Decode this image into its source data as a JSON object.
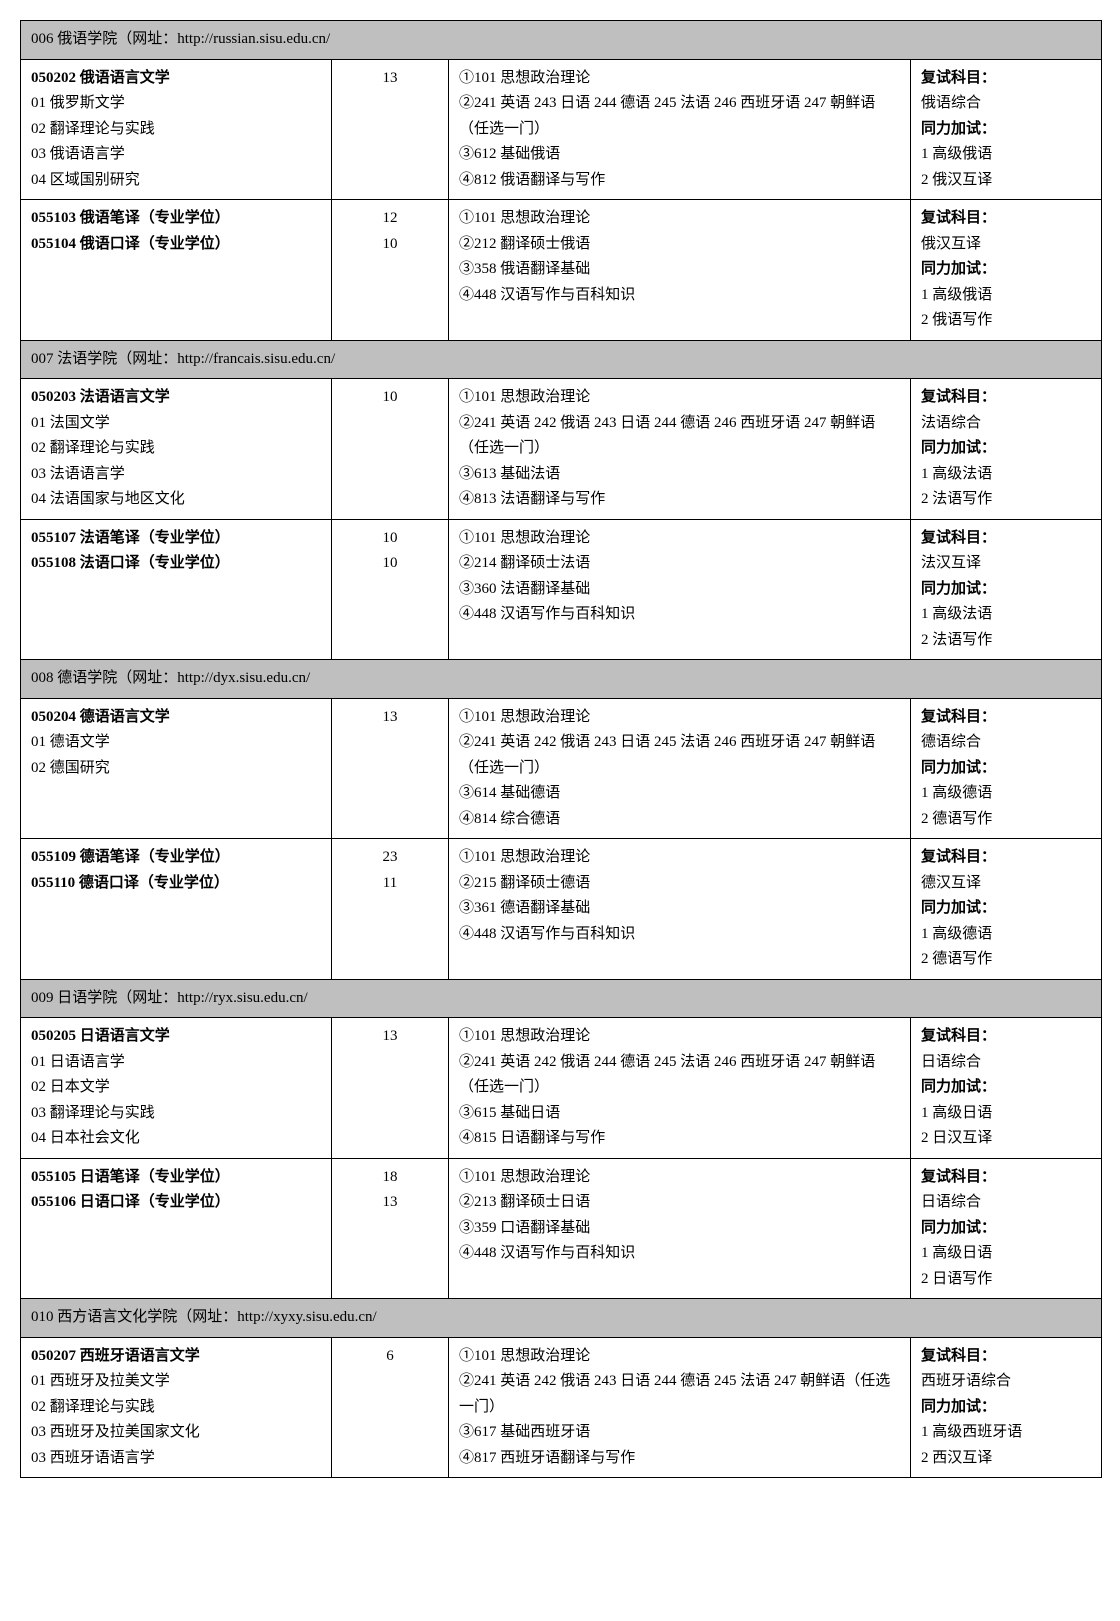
{
  "departments": [
    {
      "header": "006 俄语学院（网址：http://russian.sisu.edu.cn/",
      "rows": [
        {
          "col1": [
            {
              "t": "050202 俄语语言文学",
              "b": true
            },
            {
              "t": "01 俄罗斯文学"
            },
            {
              "t": "02 翻译理论与实践"
            },
            {
              "t": "03 俄语语言学"
            },
            {
              "t": "04 区域国别研究"
            }
          ],
          "col2": [
            "13"
          ],
          "col3": [
            "①101 思想政治理论",
            "②241 英语 243 日语 244 德语 245 法语 246 西班牙语 247 朝鲜语（任选一门）",
            "③612 基础俄语",
            "④812 俄语翻译与写作"
          ],
          "col4": [
            {
              "t": "复试科目：",
              "b": true
            },
            {
              "t": "俄语综合"
            },
            {
              "t": "同力加试：",
              "b": true
            },
            {
              "t": "1 高级俄语"
            },
            {
              "t": "2 俄汉互译"
            }
          ]
        },
        {
          "col1": [
            {
              "t": "055103 俄语笔译（专业学位）",
              "b": true
            },
            {
              "t": "055104 俄语口译（专业学位）",
              "b": true
            }
          ],
          "col2": [
            "12",
            "10"
          ],
          "col3": [
            "①101 思想政治理论",
            "②212 翻译硕士俄语",
            "③358 俄语翻译基础",
            "④448 汉语写作与百科知识"
          ],
          "col4": [
            {
              "t": "复试科目：",
              "b": true
            },
            {
              "t": "俄汉互译"
            },
            {
              "t": "同力加试：",
              "b": true
            },
            {
              "t": "1 高级俄语"
            },
            {
              "t": "2 俄语写作"
            }
          ]
        }
      ]
    },
    {
      "header": "007 法语学院（网址：http://francais.sisu.edu.cn/",
      "rows": [
        {
          "col1": [
            {
              "t": "050203 法语语言文学",
              "b": true
            },
            {
              "t": "01 法国文学"
            },
            {
              "t": "02 翻译理论与实践"
            },
            {
              "t": "03 法语语言学"
            },
            {
              "t": "04 法语国家与地区文化"
            }
          ],
          "col2": [
            "10"
          ],
          "col3": [
            "①101 思想政治理论",
            "②241 英语 242 俄语 243 日语 244 德语 246 西班牙语 247 朝鲜语（任选一门）",
            "③613 基础法语",
            "④813 法语翻译与写作"
          ],
          "col4": [
            {
              "t": "复试科目：",
              "b": true
            },
            {
              "t": "法语综合"
            },
            {
              "t": "同力加试：",
              "b": true
            },
            {
              "t": "1 高级法语"
            },
            {
              "t": "2 法语写作"
            }
          ]
        },
        {
          "col1": [
            {
              "t": "055107 法语笔译（专业学位）",
              "b": true
            },
            {
              "t": "055108 法语口译（专业学位）",
              "b": true
            }
          ],
          "col2": [
            "10",
            "10"
          ],
          "col3": [
            "①101 思想政治理论",
            "②214 翻译硕士法语",
            "③360 法语翻译基础",
            "④448 汉语写作与百科知识"
          ],
          "col4": [
            {
              "t": "复试科目：",
              "b": true
            },
            {
              "t": "法汉互译"
            },
            {
              "t": "同力加试：",
              "b": true
            },
            {
              "t": "1 高级法语"
            },
            {
              "t": "2 法语写作"
            }
          ]
        }
      ]
    },
    {
      "header": "008 德语学院（网址：http://dyx.sisu.edu.cn/",
      "rows": [
        {
          "col1": [
            {
              "t": "050204 德语语言文学",
              "b": true
            },
            {
              "t": "01 德语文学"
            },
            {
              "t": "02 德国研究"
            }
          ],
          "col2": [
            "13"
          ],
          "col3": [
            "①101 思想政治理论",
            "②241 英语 242 俄语 243 日语 245 法语 246 西班牙语 247 朝鲜语（任选一门）",
            "③614 基础德语",
            "④814 综合德语"
          ],
          "col4": [
            {
              "t": "复试科目：",
              "b": true
            },
            {
              "t": "德语综合"
            },
            {
              "t": "同力加试：",
              "b": true
            },
            {
              "t": "1 高级德语"
            },
            {
              "t": "2 德语写作"
            }
          ]
        },
        {
          "col1": [
            {
              "t": "055109 德语笔译（专业学位）",
              "b": true
            },
            {
              "t": "055110 德语口译（专业学位）",
              "b": true
            }
          ],
          "col2": [
            "23",
            "11"
          ],
          "col3": [
            "①101 思想政治理论",
            "②215 翻译硕士德语",
            "③361 德语翻译基础",
            "④448 汉语写作与百科知识"
          ],
          "col4": [
            {
              "t": "复试科目：",
              "b": true
            },
            {
              "t": "德汉互译"
            },
            {
              "t": "同力加试：",
              "b": true
            },
            {
              "t": "1 高级德语"
            },
            {
              "t": "2 德语写作"
            }
          ]
        }
      ]
    },
    {
      "header": "009 日语学院（网址：http://ryx.sisu.edu.cn/",
      "rows": [
        {
          "col1": [
            {
              "t": "050205 日语语言文学",
              "b": true
            },
            {
              "t": "01 日语语言学"
            },
            {
              "t": "02 日本文学"
            },
            {
              "t": "03 翻译理论与实践"
            },
            {
              "t": "04 日本社会文化"
            }
          ],
          "col2": [
            "13"
          ],
          "col3": [
            "①101 思想政治理论",
            "②241 英语 242 俄语 244 德语 245 法语 246 西班牙语 247 朝鲜语（任选一门）",
            "③615 基础日语",
            "④815 日语翻译与写作"
          ],
          "col4": [
            {
              "t": "复试科目：",
              "b": true
            },
            {
              "t": "日语综合"
            },
            {
              "t": "同力加试：",
              "b": true
            },
            {
              "t": "1 高级日语"
            },
            {
              "t": "2 日汉互译"
            }
          ]
        },
        {
          "col1": [
            {
              "t": "055105 日语笔译（专业学位）",
              "b": true
            },
            {
              "t": "055106 日语口译（专业学位）",
              "b": true
            }
          ],
          "col2": [
            "18",
            "13"
          ],
          "col3": [
            "①101 思想政治理论",
            "②213 翻译硕士日语",
            "③359 口语翻译基础",
            "④448 汉语写作与百科知识"
          ],
          "col4": [
            {
              "t": "复试科目：",
              "b": true
            },
            {
              "t": "日语综合"
            },
            {
              "t": "同力加试：",
              "b": true
            },
            {
              "t": "1 高级日语"
            },
            {
              "t": "2 日语写作"
            }
          ]
        }
      ]
    },
    {
      "header": "010 西方语言文化学院（网址：http://xyxy.sisu.edu.cn/",
      "rows": [
        {
          "col1": [
            {
              "t": "050207 西班牙语语言文学",
              "b": true
            },
            {
              "t": "01 西班牙及拉美文学"
            },
            {
              "t": "02 翻译理论与实践"
            },
            {
              "t": "03 西班牙及拉美国家文化"
            },
            {
              "t": "03 西班牙语语言学"
            }
          ],
          "col2": [
            "6"
          ],
          "col3": [
            "①101 思想政治理论",
            "②241 英语 242 俄语 243 日语 244 德语 245 法语 247 朝鲜语（任选一门）",
            "③617 基础西班牙语",
            "④817 西班牙语翻译与写作"
          ],
          "col4": [
            {
              "t": "复试科目：",
              "b": true
            },
            {
              "t": "西班牙语综合"
            },
            {
              "t": "同力加试：",
              "b": true
            },
            {
              "t": "1 高级西班牙语"
            },
            {
              "t": "2 西汉互译"
            }
          ]
        }
      ]
    }
  ]
}
